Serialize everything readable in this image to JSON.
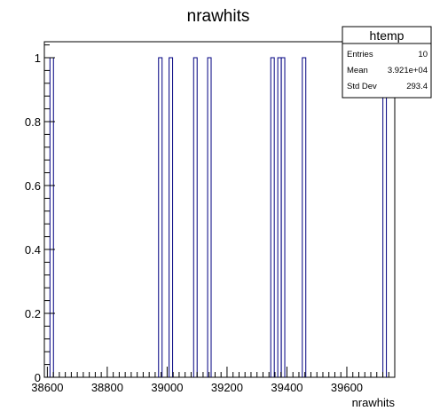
{
  "chart_data": {
    "type": "bar",
    "title": "nrawhits",
    "xlabel": "nrawhits",
    "ylabel": "",
    "xlim": [
      38590,
      39760
    ],
    "ylim": [
      0,
      1.05
    ],
    "bin_width": 11.7,
    "x_ticks": [
      38600,
      38800,
      39000,
      39200,
      39400,
      39600
    ],
    "y_ticks": [
      0,
      0.2,
      0.4,
      0.6,
      0.8,
      1
    ],
    "y_tick_labels": [
      "0",
      "0.2",
      "0.4",
      "0.6",
      "0.8",
      "1"
    ],
    "bins": [
      {
        "x": 38608.7,
        "value": 1
      },
      {
        "x": 38971.4,
        "value": 1
      },
      {
        "x": 39006.5,
        "value": 1
      },
      {
        "x": 39088.4,
        "value": 1
      },
      {
        "x": 39135.2,
        "value": 1
      },
      {
        "x": 39346.0,
        "value": 1
      },
      {
        "x": 39369.4,
        "value": 1
      },
      {
        "x": 39381.1,
        "value": 1
      },
      {
        "x": 39451.3,
        "value": 1
      },
      {
        "x": 39720.4,
        "value": 1
      }
    ],
    "line_color": "#000080",
    "grid": false,
    "legend": {
      "placement": "top-right",
      "title": "htemp",
      "rows": [
        {
          "label": "Entries",
          "value": "10"
        },
        {
          "label": "Mean",
          "value": "3.921e+04"
        },
        {
          "label": "Std Dev",
          "value": "293.4"
        }
      ]
    }
  }
}
